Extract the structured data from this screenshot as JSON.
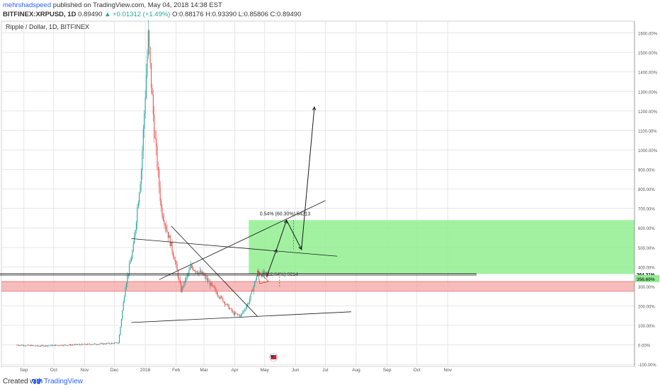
{
  "header": {
    "author": "mehrshadspeed",
    "published": "published on TradingView.com, May 04, 2018 14:38 EST",
    "symbol": "BITFINEX:XRPUSD, 1D",
    "last": "0.89490",
    "change": "▲ +0.01312 (+1.49%)",
    "ohlc": "O:0.88176 H:0.93390 L:0.85806 C:0.89490"
  },
  "pane_title": "Ripple / Dollar, 1D, BITFINEX",
  "footer": {
    "created_with": "Created with",
    "brand": "TradingView"
  },
  "colors": {
    "up": "#26a69a",
    "down": "#ef5350",
    "target_zone": "#90ee90",
    "support_zone": "#f4a6a6",
    "line": "#1a1a1a",
    "grid": "#e6e6e6"
  },
  "chart_data": {
    "type": "candlestick",
    "ylabel": "",
    "ylim": [
      -110,
      1660
    ],
    "yscale": "percent",
    "y_ticks": [
      "-100.00%",
      "0.00%",
      "100.00%",
      "200.00%",
      "300.00%",
      "400.00%",
      "500.00%",
      "600.00%",
      "700.00%",
      "800.00%",
      "900.00%",
      "1000.00%",
      "1100.00%",
      "1200.00%",
      "1300.00%",
      "1400.00%",
      "1500.00%",
      "1600.00%"
    ],
    "x_ticks": [
      "Sep",
      "Oct",
      "Nov",
      "Dec",
      "2018",
      "Feb",
      "Mar",
      "Apr",
      "May",
      "Jun",
      "Jul",
      "Aug",
      "Sep",
      "Oct",
      "Nov"
    ],
    "grid": true,
    "price_labels": {
      "current": "364.31%",
      "secondary": "356.60%"
    },
    "zones": [
      {
        "name": "target",
        "from_date": "2018-04-15",
        "to_date": "2018-11-30",
        "y_low": 364,
        "y_high": 640
      },
      {
        "name": "support",
        "from_date": "2017-08-20",
        "to_date": "2018-11-30",
        "y_low": 275,
        "y_high": 325
      }
    ],
    "annotations": [
      {
        "text": "0.54% (60.30%) 54213"
      },
      {
        "text": "(12.64%) 3214"
      }
    ],
    "series_summary": [
      {
        "date": "2017-08-25",
        "value": 0
      },
      {
        "date": "2017-09-15",
        "value": -5
      },
      {
        "date": "2017-10-15",
        "value": 0
      },
      {
        "date": "2017-11-15",
        "value": 5
      },
      {
        "date": "2017-12-05",
        "value": 10
      },
      {
        "date": "2017-12-12",
        "value": 300
      },
      {
        "date": "2017-12-20",
        "value": 500
      },
      {
        "date": "2017-12-28",
        "value": 900
      },
      {
        "date": "2018-01-04",
        "value": 1580
      },
      {
        "date": "2018-01-10",
        "value": 1100
      },
      {
        "date": "2018-01-17",
        "value": 700
      },
      {
        "date": "2018-01-30",
        "value": 450
      },
      {
        "date": "2018-02-06",
        "value": 280
      },
      {
        "date": "2018-02-16",
        "value": 400
      },
      {
        "date": "2018-02-28",
        "value": 360
      },
      {
        "date": "2018-03-15",
        "value": 260
      },
      {
        "date": "2018-03-31",
        "value": 160
      },
      {
        "date": "2018-04-07",
        "value": 150
      },
      {
        "date": "2018-04-15",
        "value": 220
      },
      {
        "date": "2018-04-24",
        "value": 370
      },
      {
        "date": "2018-05-04",
        "value": 355
      }
    ]
  }
}
